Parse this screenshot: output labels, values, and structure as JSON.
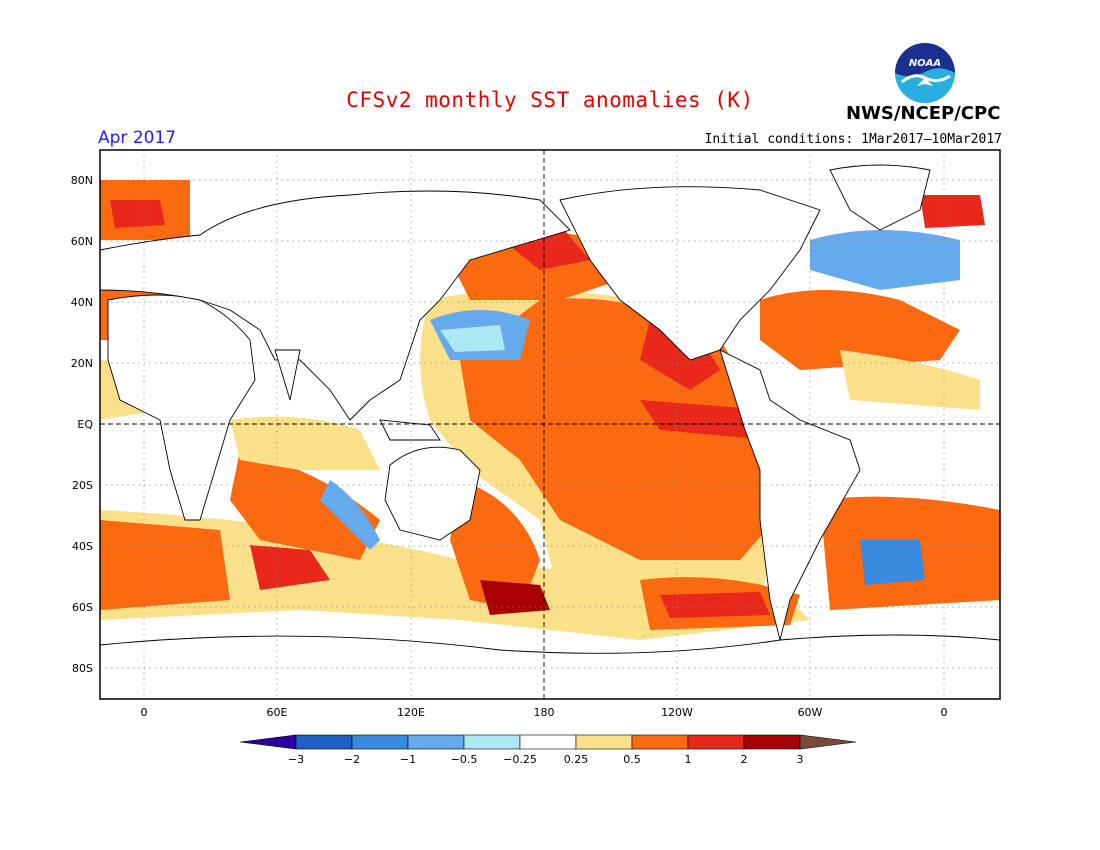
{
  "header": {
    "title": "CFSv2 monthly SST anomalies (K)",
    "month": "Apr 2017",
    "initial_conditions": "Initial conditions: 1Mar2017–10Mar2017",
    "organization": "NWS/NCEP/CPC",
    "logo_text": "NOAA"
  },
  "map": {
    "lat_labels": [
      "80N",
      "60N",
      "40N",
      "20N",
      "EQ",
      "20S",
      "40S",
      "60S",
      "80S"
    ],
    "lon_labels": [
      "0",
      "60E",
      "120E",
      "180",
      "120W",
      "60W",
      "0"
    ],
    "grid": "dotted",
    "reference_lines": [
      "EQ",
      "180"
    ]
  },
  "colorbar": {
    "labels": [
      "−3",
      "−2",
      "−1",
      "−0.5",
      "−0.25",
      "0.25",
      "0.5",
      "1",
      "2",
      "3"
    ],
    "colors": [
      "#2a00a0",
      "#1f5fc8",
      "#3a8ae0",
      "#66aaee",
      "#aee8f5",
      "#ffffff",
      "#fbe08a",
      "#fb6a10",
      "#e8281a",
      "#a80000",
      "#7a4a3a"
    ]
  },
  "colors": {
    "title": "#e00000",
    "month": "#2020ff",
    "land": "#ffffff",
    "coast": "#000000"
  }
}
